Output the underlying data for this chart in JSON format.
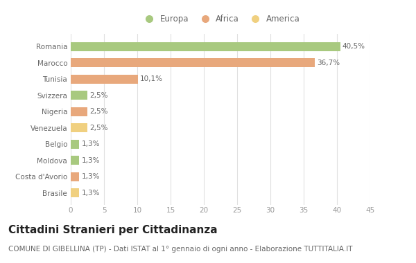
{
  "categories": [
    "Romania",
    "Marocco",
    "Tunisia",
    "Svizzera",
    "Nigeria",
    "Venezuela",
    "Belgio",
    "Moldova",
    "Costa d'Avorio",
    "Brasile"
  ],
  "values": [
    40.5,
    36.7,
    10.1,
    2.5,
    2.5,
    2.5,
    1.3,
    1.3,
    1.3,
    1.3
  ],
  "labels": [
    "40,5%",
    "36,7%",
    "10,1%",
    "2,5%",
    "2,5%",
    "2,5%",
    "1,3%",
    "1,3%",
    "1,3%",
    "1,3%"
  ],
  "continent": [
    "Europa",
    "Africa",
    "Africa",
    "Europa",
    "Africa",
    "America",
    "Europa",
    "Europa",
    "Africa",
    "America"
  ],
  "colors": {
    "Europa": "#a8c97f",
    "Africa": "#e8a87c",
    "America": "#f0d080"
  },
  "xlim": [
    0,
    45
  ],
  "xticks": [
    0,
    5,
    10,
    15,
    20,
    25,
    30,
    35,
    40,
    45
  ],
  "title": "Cittadini Stranieri per Cittadinanza",
  "subtitle": "COMUNE DI GIBELLINA (TP) - Dati ISTAT al 1° gennaio di ogni anno - Elaborazione TUTTITALIA.IT",
  "background_color": "#ffffff",
  "grid_color": "#e0e0e0",
  "bar_height": 0.55,
  "title_fontsize": 11,
  "subtitle_fontsize": 7.5,
  "label_fontsize": 7.5,
  "tick_fontsize": 7.5,
  "legend_fontsize": 8.5
}
